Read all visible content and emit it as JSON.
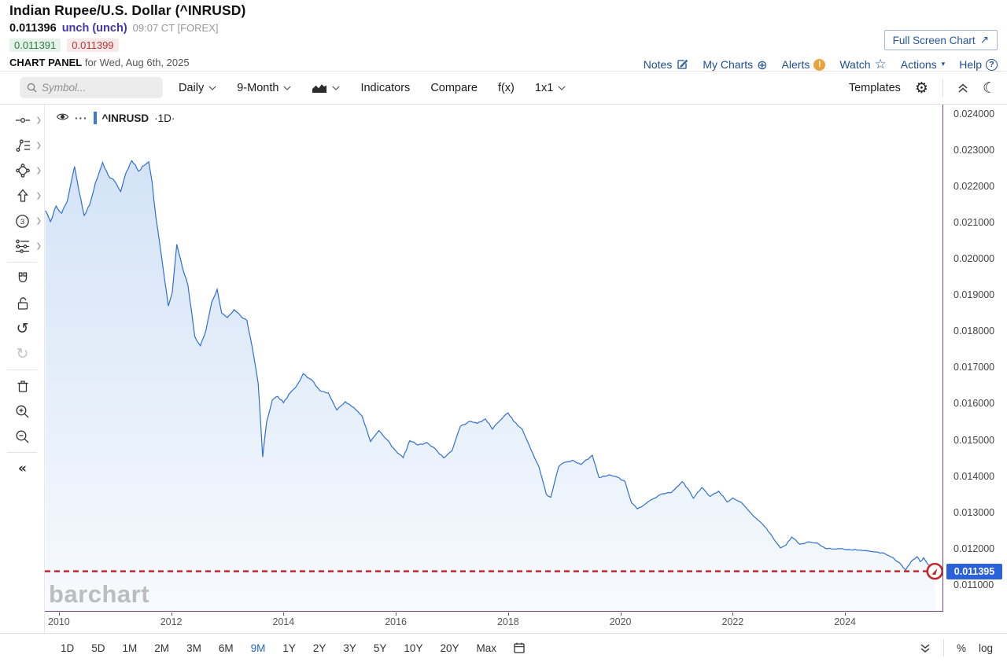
{
  "header": {
    "title": "Indian Rupee/U.S. Dollar (^INRUSD)",
    "price": "0.011396",
    "change": "unch (unch)",
    "quote_time": "09:07 CT [FOREX]",
    "bid": "0.011391",
    "ask": "0.011399",
    "panel_label": "CHART PANEL",
    "panel_date": "for Wed, Aug 6th, 2025",
    "fullscreen_button": "Full Screen Chart",
    "links": [
      "Notes",
      "My Charts",
      "Alerts",
      "Watch",
      "Actions",
      "Help"
    ]
  },
  "toolbar": {
    "symbol_placeholder": "Symbol...",
    "period": "Daily",
    "range": "9-Month",
    "indicators": "Indicators",
    "compare": "Compare",
    "fx": "f(x)",
    "grid": "1x1",
    "templates": "Templates"
  },
  "legend": {
    "symbol": "^INRUSD",
    "interval": "·1D·"
  },
  "watermark": "barchart",
  "rail_tools": [
    {
      "icon": "crosshair-tool-icon",
      "expand": true
    },
    {
      "icon": "trendline-tool-icon",
      "expand": true
    },
    {
      "icon": "shapes-tool-icon",
      "expand": true
    },
    {
      "icon": "arrow-tool-icon",
      "expand": true
    },
    {
      "icon": "elliott-wave-tool-icon",
      "expand": true
    },
    {
      "icon": "fibonacci-tool-icon",
      "expand": true
    },
    {
      "divider": true
    },
    {
      "icon": "magnet-tool-icon"
    },
    {
      "icon": "unlock-tool-icon"
    },
    {
      "icon": "undo-icon"
    },
    {
      "icon": "redo-icon",
      "disabled": true
    },
    {
      "divider": true
    },
    {
      "icon": "trash-icon"
    },
    {
      "icon": "zoom-in-icon"
    },
    {
      "icon": "zoom-out-icon"
    },
    {
      "divider": true
    },
    {
      "icon": "collapse-rail-icon"
    }
  ],
  "bottom_bar": {
    "ranges": [
      "1D",
      "5D",
      "1M",
      "2M",
      "3M",
      "6M",
      "9M",
      "1Y",
      "2Y",
      "3Y",
      "5Y",
      "10Y",
      "20Y",
      "Max"
    ],
    "active": "9M",
    "percent": "%",
    "log": "log"
  },
  "chart_data": {
    "type": "area",
    "title": "Indian Rupee/U.S. Dollar (^INRUSD) daily, 2010-2025",
    "x_domain": [
      2009.75,
      2025.75
    ],
    "y_domain": [
      0.01028,
      0.02428
    ],
    "x_ticks": [
      2010,
      2012,
      2014,
      2016,
      2018,
      2020,
      2022,
      2024
    ],
    "y_ticks": [
      0.011,
      0.012,
      0.013,
      0.014,
      0.015,
      0.016,
      0.017,
      0.018,
      0.019,
      0.02,
      0.021,
      0.022,
      0.023,
      0.024
    ],
    "last_price": 0.011395,
    "last_price_label": "0.011395",
    "line_color": "#2f6fd3",
    "fill_top": "#d3e3f6",
    "fill_bottom": "#f7fafe",
    "dash_color": "#c2272d",
    "badge_color": "#2b62d9",
    "grid": false,
    "legend_position": "top-left",
    "points": [
      [
        2009.76,
        0.02135
      ],
      [
        2009.85,
        0.02105
      ],
      [
        2009.95,
        0.02148
      ],
      [
        2010.05,
        0.02128
      ],
      [
        2010.15,
        0.02162
      ],
      [
        2010.28,
        0.02257
      ],
      [
        2010.36,
        0.02188
      ],
      [
        2010.45,
        0.02122
      ],
      [
        2010.55,
        0.02152
      ],
      [
        2010.65,
        0.02212
      ],
      [
        2010.78,
        0.02268
      ],
      [
        2010.88,
        0.02232
      ],
      [
        2011.0,
        0.02215
      ],
      [
        2011.1,
        0.02188
      ],
      [
        2011.2,
        0.02242
      ],
      [
        2011.3,
        0.02273
      ],
      [
        2011.42,
        0.02244
      ],
      [
        2011.52,
        0.0226
      ],
      [
        2011.6,
        0.0227
      ],
      [
        2011.66,
        0.02215
      ],
      [
        2011.73,
        0.02115
      ],
      [
        2011.8,
        0.0204
      ],
      [
        2011.88,
        0.01948
      ],
      [
        2011.95,
        0.01872
      ],
      [
        2012.02,
        0.0191
      ],
      [
        2012.1,
        0.02042
      ],
      [
        2012.2,
        0.01978
      ],
      [
        2012.3,
        0.01928
      ],
      [
        2012.42,
        0.01788
      ],
      [
        2012.52,
        0.01762
      ],
      [
        2012.62,
        0.01805
      ],
      [
        2012.72,
        0.01882
      ],
      [
        2012.82,
        0.01918
      ],
      [
        2012.9,
        0.01852
      ],
      [
        2013.0,
        0.0184
      ],
      [
        2013.12,
        0.01862
      ],
      [
        2013.25,
        0.01842
      ],
      [
        2013.35,
        0.01832
      ],
      [
        2013.45,
        0.01752
      ],
      [
        2013.55,
        0.01658
      ],
      [
        2013.63,
        0.01455
      ],
      [
        2013.7,
        0.01552
      ],
      [
        2013.8,
        0.01612
      ],
      [
        2013.9,
        0.01622
      ],
      [
        2014.0,
        0.01605
      ],
      [
        2014.12,
        0.01632
      ],
      [
        2014.22,
        0.01648
      ],
      [
        2014.35,
        0.01685
      ],
      [
        2014.5,
        0.01668
      ],
      [
        2014.65,
        0.01638
      ],
      [
        2014.8,
        0.01632
      ],
      [
        2014.95,
        0.01585
      ],
      [
        2015.1,
        0.01608
      ],
      [
        2015.25,
        0.01592
      ],
      [
        2015.4,
        0.01568
      ],
      [
        2015.55,
        0.01498
      ],
      [
        2015.7,
        0.01528
      ],
      [
        2015.85,
        0.01502
      ],
      [
        2016.0,
        0.01472
      ],
      [
        2016.13,
        0.01453
      ],
      [
        2016.25,
        0.015
      ],
      [
        2016.4,
        0.01488
      ],
      [
        2016.55,
        0.01495
      ],
      [
        2016.7,
        0.01478
      ],
      [
        2016.85,
        0.01453
      ],
      [
        2017.0,
        0.01472
      ],
      [
        2017.15,
        0.0154
      ],
      [
        2017.3,
        0.01553
      ],
      [
        2017.45,
        0.01548
      ],
      [
        2017.6,
        0.0156
      ],
      [
        2017.72,
        0.01532
      ],
      [
        2017.85,
        0.01555
      ],
      [
        2018.0,
        0.01577
      ],
      [
        2018.1,
        0.01553
      ],
      [
        2018.25,
        0.01532
      ],
      [
        2018.4,
        0.01478
      ],
      [
        2018.55,
        0.01428
      ],
      [
        2018.68,
        0.01352
      ],
      [
        2018.76,
        0.01344
      ],
      [
        2018.9,
        0.01428
      ],
      [
        2019.0,
        0.0144
      ],
      [
        2019.15,
        0.01446
      ],
      [
        2019.3,
        0.01434
      ],
      [
        2019.5,
        0.0146
      ],
      [
        2019.62,
        0.01398
      ],
      [
        2019.8,
        0.01406
      ],
      [
        2019.95,
        0.01399
      ],
      [
        2020.08,
        0.01388
      ],
      [
        2020.2,
        0.01328
      ],
      [
        2020.3,
        0.01312
      ],
      [
        2020.45,
        0.01326
      ],
      [
        2020.6,
        0.01341
      ],
      [
        2020.75,
        0.01354
      ],
      [
        2020.9,
        0.01356
      ],
      [
        2021.0,
        0.01372
      ],
      [
        2021.1,
        0.01387
      ],
      [
        2021.2,
        0.01368
      ],
      [
        2021.3,
        0.01341
      ],
      [
        2021.45,
        0.01371
      ],
      [
        2021.6,
        0.01346
      ],
      [
        2021.75,
        0.01361
      ],
      [
        2021.9,
        0.01331
      ],
      [
        2022.0,
        0.01342
      ],
      [
        2022.15,
        0.0133
      ],
      [
        2022.3,
        0.01304
      ],
      [
        2022.45,
        0.01281
      ],
      [
        2022.6,
        0.01258
      ],
      [
        2022.75,
        0.01224
      ],
      [
        2022.85,
        0.01204
      ],
      [
        2022.95,
        0.01212
      ],
      [
        2023.05,
        0.01234
      ],
      [
        2023.2,
        0.01214
      ],
      [
        2023.35,
        0.01221
      ],
      [
        2023.5,
        0.01218
      ],
      [
        2023.65,
        0.01203
      ],
      [
        2023.8,
        0.01201
      ],
      [
        2023.95,
        0.01202
      ],
      [
        2024.1,
        0.01199
      ],
      [
        2024.25,
        0.01198
      ],
      [
        2024.4,
        0.01196
      ],
      [
        2024.55,
        0.01193
      ],
      [
        2024.7,
        0.01189
      ],
      [
        2024.85,
        0.01178
      ],
      [
        2025.0,
        0.01158
      ],
      [
        2025.08,
        0.01143
      ],
      [
        2025.18,
        0.01167
      ],
      [
        2025.28,
        0.0118
      ],
      [
        2025.34,
        0.01166
      ],
      [
        2025.4,
        0.01177
      ],
      [
        2025.48,
        0.01158
      ],
      [
        2025.54,
        0.0115
      ],
      [
        2025.6,
        0.011395
      ]
    ]
  }
}
